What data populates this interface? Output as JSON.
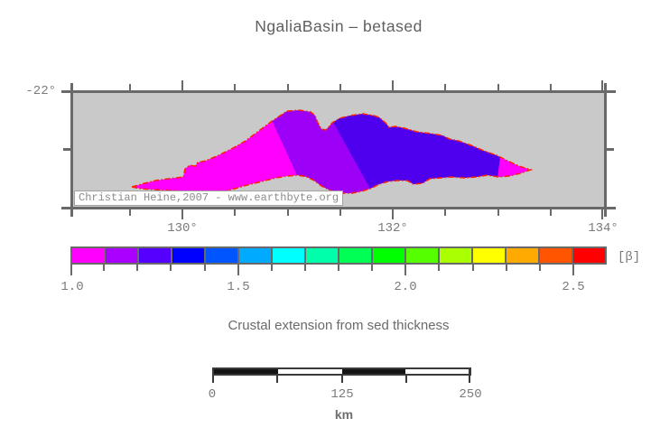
{
  "title": "NgaliaBasin – betased",
  "map": {
    "lat_label": "-22°",
    "lon_labels": [
      "130°",
      "132°",
      "134°"
    ],
    "attribution": "Christian Heine,2007 - www.earthbyte.org",
    "colors": {
      "background": "#c9c9c9",
      "frame": "#696969",
      "basin_magenta": "#ff00ff",
      "basin_purple": "#9d00f7",
      "basin_blue": "#4e00ee",
      "basin_outline": "#ff2400"
    }
  },
  "colorbar": {
    "unit_label": "[β]",
    "tick_labels": [
      "1.0",
      "1.5",
      "2.0",
      "2.5"
    ],
    "segment_colors": [
      "#ff00ff",
      "#aa00ff",
      "#5500ff",
      "#0000ff",
      "#0055ff",
      "#00aaff",
      "#00ffff",
      "#00ffaa",
      "#00ff55",
      "#00ff00",
      "#55ff00",
      "#aaff00",
      "#ffff00",
      "#ffaa00",
      "#ff5500",
      "#ff0000"
    ]
  },
  "caption": "Crustal extension from sed thickness",
  "scalebar": {
    "tick_labels": [
      "0",
      "125",
      "250"
    ],
    "unit_label": "km"
  }
}
